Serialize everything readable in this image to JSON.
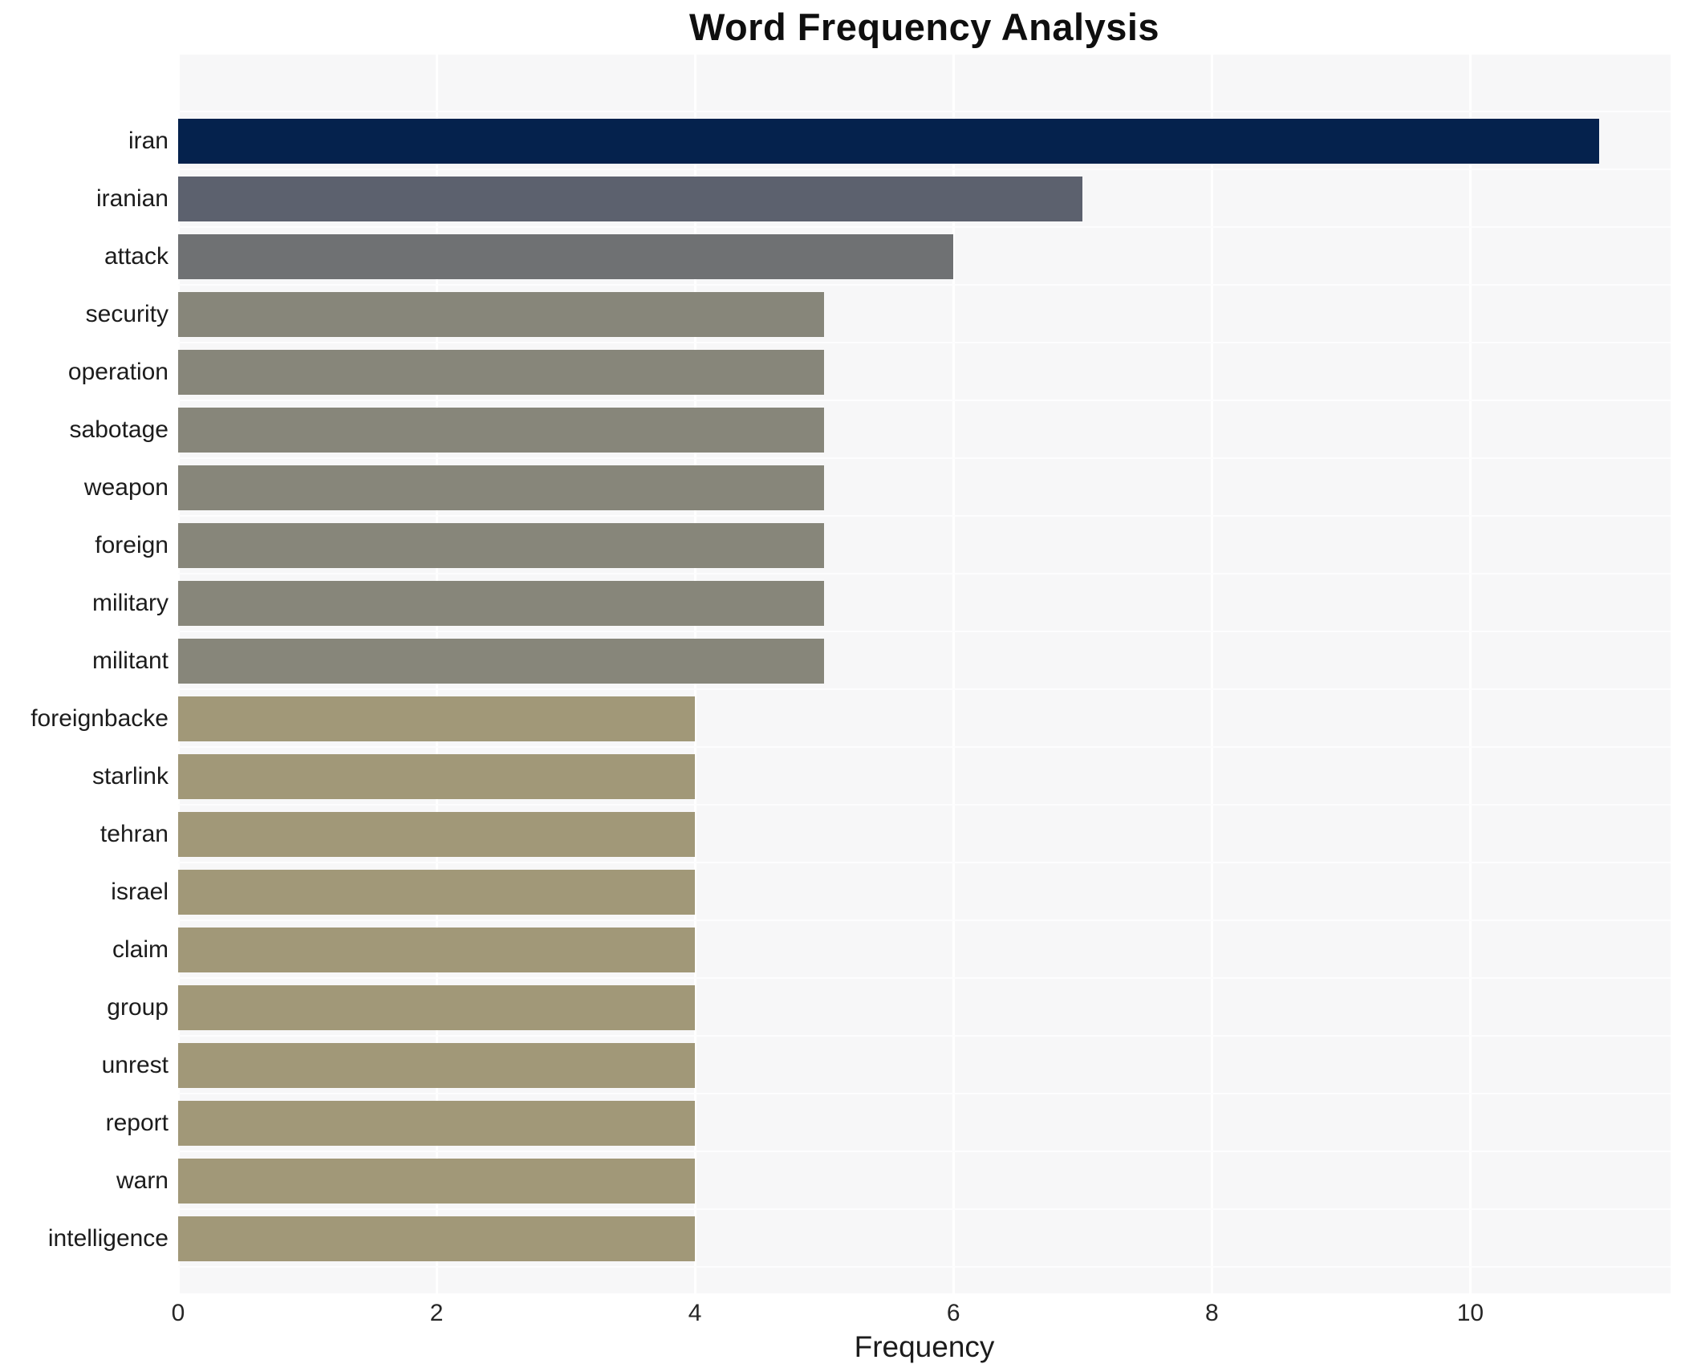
{
  "title": "Word Frequency Analysis",
  "chart_data": {
    "type": "bar",
    "orientation": "horizontal",
    "title": "Word Frequency Analysis",
    "xlabel": "Frequency",
    "ylabel": "",
    "categories": [
      "iran",
      "iranian",
      "attack",
      "security",
      "operation",
      "sabotage",
      "weapon",
      "foreign",
      "military",
      "militant",
      "foreignbacke",
      "starlink",
      "tehran",
      "israel",
      "claim",
      "group",
      "unrest",
      "report",
      "warn",
      "intelligence"
    ],
    "values": [
      11,
      7,
      6,
      5,
      5,
      5,
      5,
      5,
      5,
      5,
      4,
      4,
      4,
      4,
      4,
      4,
      4,
      4,
      4,
      4
    ],
    "bar_colors": [
      "#05224d",
      "#5c616e",
      "#6f7173",
      "#87867a",
      "#87867a",
      "#87867a",
      "#87867a",
      "#87867a",
      "#87867a",
      "#87867a",
      "#a19878",
      "#a19878",
      "#a19878",
      "#a19878",
      "#a19878",
      "#a19878",
      "#a19878",
      "#a19878",
      "#a19878",
      "#a19878"
    ],
    "xticks": [
      "0",
      "2",
      "4",
      "6",
      "8",
      "10"
    ],
    "xtick_values": [
      0,
      2,
      4,
      6,
      8,
      10
    ],
    "xlim": [
      0,
      11.55
    ],
    "grid": "vertical white gridlines on light gray plot background",
    "legend": "none",
    "plot_background": "#f7f7f8",
    "figure_background": "#ffffff",
    "gridline_color": "#ffffff"
  }
}
